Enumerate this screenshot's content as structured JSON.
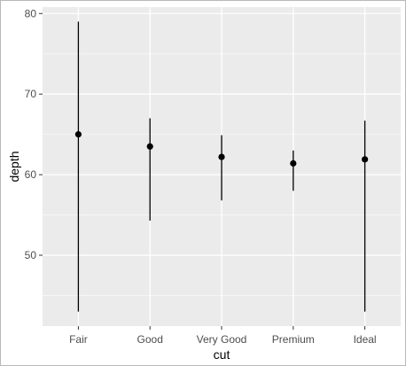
{
  "chart_data": {
    "type": "pointrange",
    "xlabel": "cut",
    "ylabel": "depth",
    "categories": [
      "Fair",
      "Good",
      "Very Good",
      "Premium",
      "Ideal"
    ],
    "y": [
      65.0,
      63.5,
      62.2,
      61.4,
      61.9
    ],
    "ymin": [
      43.0,
      54.3,
      56.8,
      58.0,
      43.0
    ],
    "ymax": [
      79.0,
      67.0,
      64.9,
      63.0,
      66.7
    ],
    "yticks": [
      50,
      60,
      70,
      80
    ],
    "ylim": [
      41.2,
      80.8
    ],
    "grid": true,
    "legend": "none",
    "colors": {
      "panel": "#ebebeb",
      "grid_major": "#ffffff",
      "mark": "#000000",
      "tick_text": "#4d4d4d"
    }
  }
}
